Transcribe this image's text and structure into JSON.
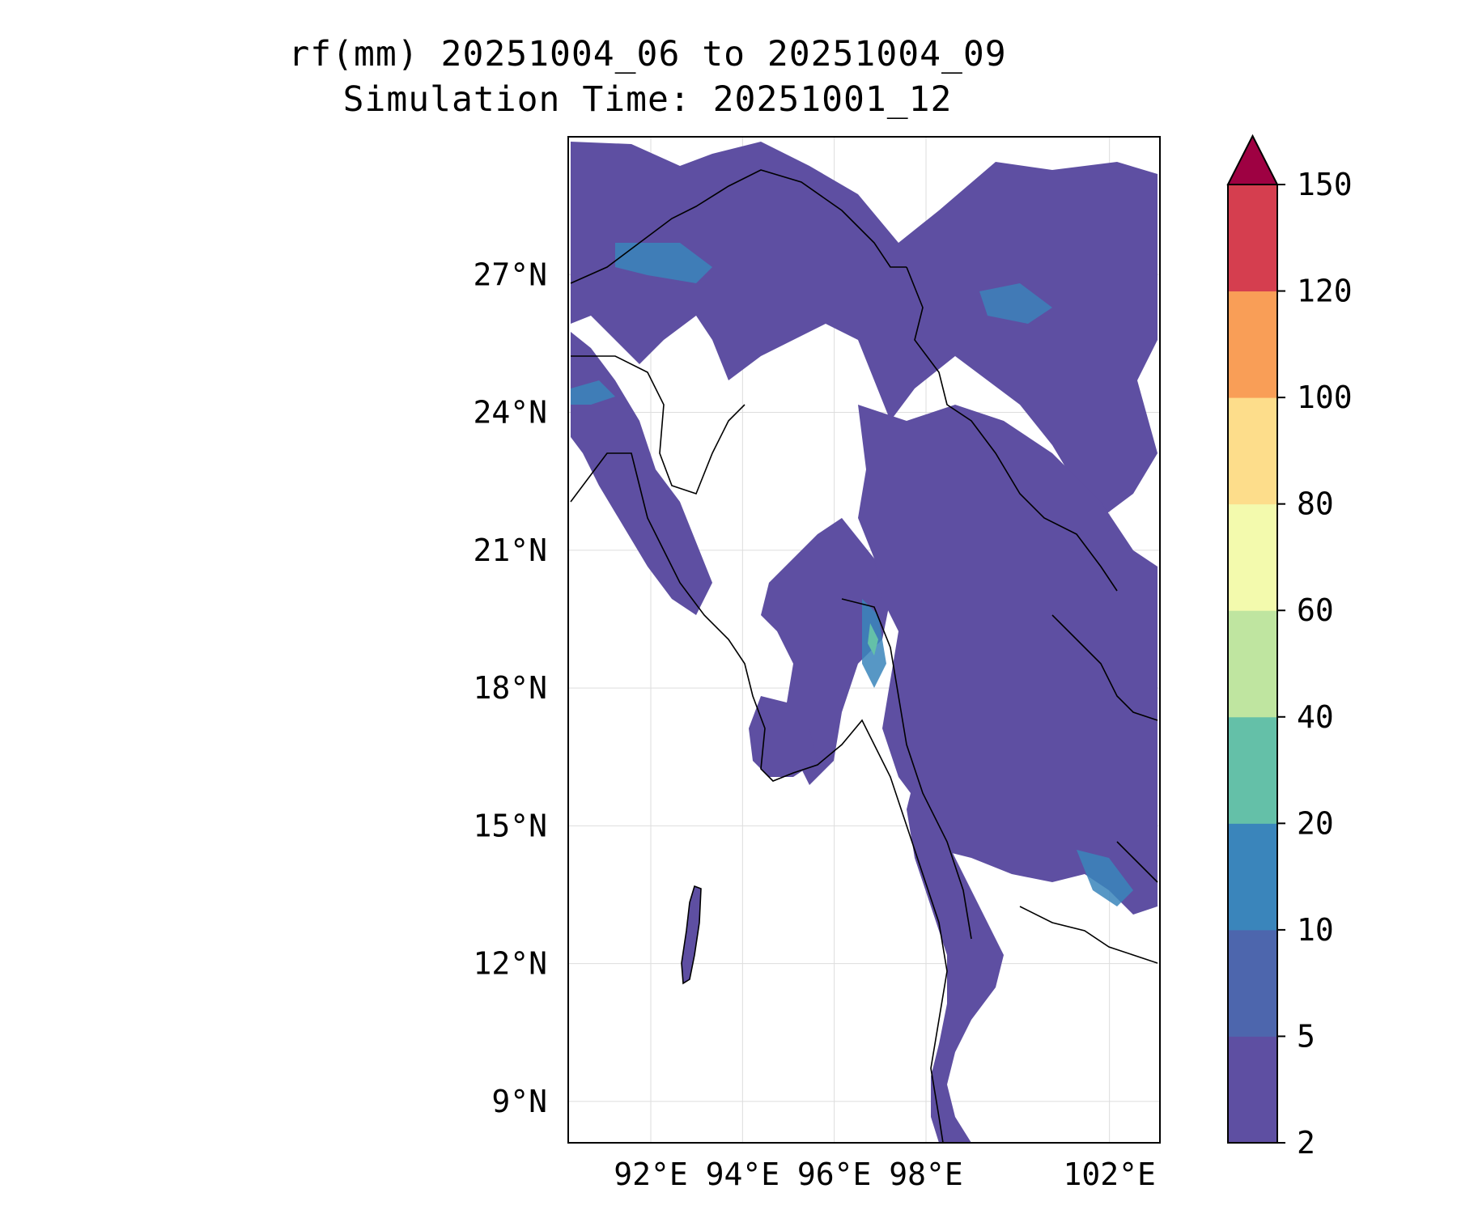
{
  "figure": {
    "title_line1": "rf(mm) 20251004_06 to 20251004_09",
    "title_line2": "Simulation Time: 20251001_12"
  },
  "map": {
    "lat_labels": [
      "27°N",
      "24°N",
      "21°N",
      "18°N",
      "15°N",
      "12°N",
      "9°N"
    ],
    "lat_values": [
      27,
      24,
      21,
      18,
      15,
      12,
      9
    ],
    "lon_labels": [
      "92°E",
      "94°E",
      "96°E",
      "98°E",
      "102°E"
    ],
    "lon_values": [
      92,
      94,
      96,
      98,
      102
    ],
    "lon_range": [
      90.2,
      103.1
    ],
    "lat_range": [
      8.1,
      30.0
    ],
    "gridlines": true,
    "coastline_color": "#000000"
  },
  "colorbar": {
    "ticks": [
      "2",
      "5",
      "10",
      "20",
      "40",
      "60",
      "80",
      "100",
      "120",
      "150"
    ],
    "bins": [
      {
        "from": "2",
        "to": "5",
        "color": "#5e4fa2"
      },
      {
        "from": "5",
        "to": "10",
        "color": "#4d66ad"
      },
      {
        "from": "10",
        "to": "20",
        "color": "#3a85bb"
      },
      {
        "from": "20",
        "to": "40",
        "color": "#64c0a8"
      },
      {
        "from": "40",
        "to": "60",
        "color": "#bfe5a0"
      },
      {
        "from": "60",
        "to": "80",
        "color": "#f3faad"
      },
      {
        "from": "80",
        "to": "100",
        "color": "#fddd8b"
      },
      {
        "from": "100",
        "to": "120",
        "color": "#f99e57"
      },
      {
        "from": "120",
        "to": "150",
        "color": "#d53e4f"
      }
    ],
    "extend_color": "#9e0142",
    "extend": "max"
  }
}
